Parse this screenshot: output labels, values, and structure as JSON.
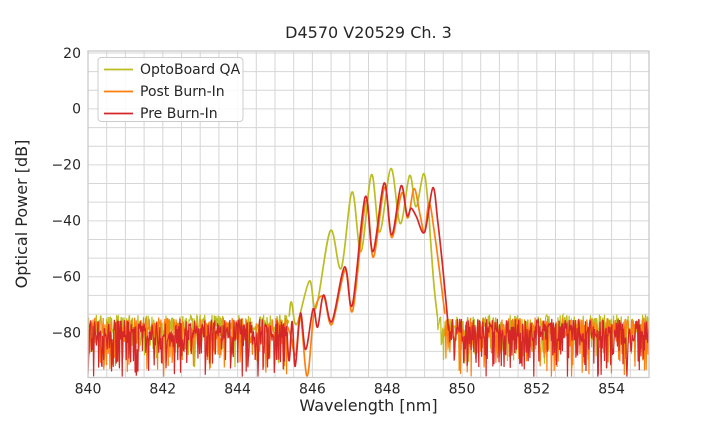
{
  "chart": {
    "title": "D4570 V20529 Ch. 3",
    "xlabel": "Wavelength [nm]",
    "ylabel": "Optical Power [dB]"
  },
  "legend": {
    "position": "upper left",
    "items": [
      {
        "label": "OptoBoard QA",
        "color": "#bcbd22"
      },
      {
        "label": "Post Burn-In",
        "color": "#ff7f0e"
      },
      {
        "label": "Pre Burn-In",
        "color": "#d62728"
      }
    ]
  },
  "chart_data": {
    "type": "line",
    "title": "D4570 V20529 Ch. 3",
    "xlabel": "Wavelength [nm]",
    "ylabel": "Optical Power [dB]",
    "xlim": [
      840,
      855
    ],
    "ylim": [
      -96,
      20.7
    ],
    "xticks": [
      840,
      842,
      844,
      846,
      848,
      850,
      852,
      854
    ],
    "yticks": [
      20,
      0,
      -20,
      -40,
      -60,
      -80
    ],
    "ytick_labels": [
      "20",
      "0",
      "−20",
      "−40",
      "−60",
      "−80"
    ],
    "grid": {
      "on": true,
      "x_step_nm": 0.5,
      "y_step_db": 6.6667,
      "color": "#d6d6d6"
    },
    "description": "Multimode VCSEL optical spectra: noise floor near -75..-95 dB across 840-855 nm with a multi-lobed emission peak between ~845.4 and ~849.6 nm. OptoBoard QA trace is shifted ~0.3 nm left and ~5 dB higher than Pre/Post Burn-In traces.",
    "series": [
      {
        "name": "OptoBoard QA",
        "color": "#bcbd22",
        "noise_regions": [
          [
            840.0,
            845.38
          ],
          [
            849.34,
            855.0
          ]
        ],
        "noise_floor": {
          "top_db": -73.5,
          "band_db": 7.0,
          "spike_prob": 0.28,
          "spike_extra_db": 14
        },
        "signal_points": [
          [
            845.38,
            -74
          ],
          [
            845.44,
            -69
          ],
          [
            845.58,
            -77
          ],
          [
            845.92,
            -61.5
          ],
          [
            846.1,
            -71
          ],
          [
            846.48,
            -43.5
          ],
          [
            846.77,
            -57
          ],
          [
            847.06,
            -29.7
          ],
          [
            847.3,
            -51
          ],
          [
            847.58,
            -23.5
          ],
          [
            847.8,
            -44
          ],
          [
            848.1,
            -21.3
          ],
          [
            848.35,
            -41
          ],
          [
            848.6,
            -23.8
          ],
          [
            848.77,
            -35
          ],
          [
            848.97,
            -23.2
          ],
          [
            849.08,
            -32
          ],
          [
            849.16,
            -47
          ],
          [
            849.25,
            -63
          ],
          [
            849.34,
            -74
          ]
        ]
      },
      {
        "name": "Post Burn-In",
        "color": "#ff7f0e",
        "noise_regions": [
          [
            840.0,
            845.34
          ],
          [
            849.54,
            855.0
          ]
        ],
        "noise_floor": {
          "top_db": -74.5,
          "band_db": 7.5,
          "spike_prob": 0.32,
          "spike_extra_db": 15
        },
        "signal_points": [
          [
            845.34,
            -78
          ],
          [
            845.42,
            -81
          ],
          [
            845.55,
            -88
          ],
          [
            845.68,
            -74
          ],
          [
            845.86,
            -95.5
          ],
          [
            846.05,
            -72.5
          ],
          [
            846.3,
            -67
          ],
          [
            846.52,
            -77
          ],
          [
            846.88,
            -57.5
          ],
          [
            847.08,
            -72
          ],
          [
            847.43,
            -33
          ],
          [
            847.63,
            -53
          ],
          [
            847.93,
            -28
          ],
          [
            848.12,
            -46
          ],
          [
            848.39,
            -30
          ],
          [
            848.55,
            -39
          ],
          [
            848.72,
            -28.5
          ],
          [
            848.88,
            -38
          ],
          [
            849.0,
            -44
          ],
          [
            849.12,
            -33.5
          ],
          [
            849.26,
            -44
          ],
          [
            849.4,
            -58
          ],
          [
            849.54,
            -73
          ]
        ]
      },
      {
        "name": "Pre Burn-In",
        "color": "#d62728",
        "noise_regions": [
          [
            840.0,
            845.32
          ],
          [
            849.64,
            855.0
          ]
        ],
        "noise_floor": {
          "top_db": -75.0,
          "band_db": 8.0,
          "spike_prob": 0.38,
          "spike_extra_db": 15
        },
        "signal_points": [
          [
            845.32,
            -80
          ],
          [
            845.38,
            -90
          ],
          [
            845.46,
            -76
          ],
          [
            845.54,
            -92
          ],
          [
            845.68,
            -73
          ],
          [
            845.82,
            -86
          ],
          [
            846.02,
            -71.5
          ],
          [
            846.14,
            -78
          ],
          [
            846.3,
            -66.5
          ],
          [
            846.52,
            -76
          ],
          [
            846.86,
            -56.5
          ],
          [
            847.07,
            -70
          ],
          [
            847.41,
            -31.5
          ],
          [
            847.62,
            -51
          ],
          [
            847.92,
            -26.5
          ],
          [
            848.12,
            -45
          ],
          [
            848.37,
            -27.5
          ],
          [
            848.53,
            -38
          ],
          [
            848.64,
            -35.5
          ],
          [
            848.78,
            -38.5
          ],
          [
            849.0,
            -44
          ],
          [
            849.22,
            -28.2
          ],
          [
            849.35,
            -40
          ],
          [
            849.48,
            -56
          ],
          [
            849.58,
            -70
          ],
          [
            849.64,
            -79
          ]
        ]
      }
    ],
    "draw_order": [
      "OptoBoard QA",
      "Post Burn-In",
      "Pre Burn-In"
    ],
    "legend_position": "upper left",
    "plot_bg": "#ffffff",
    "spine_color": "#c9c9c9"
  }
}
